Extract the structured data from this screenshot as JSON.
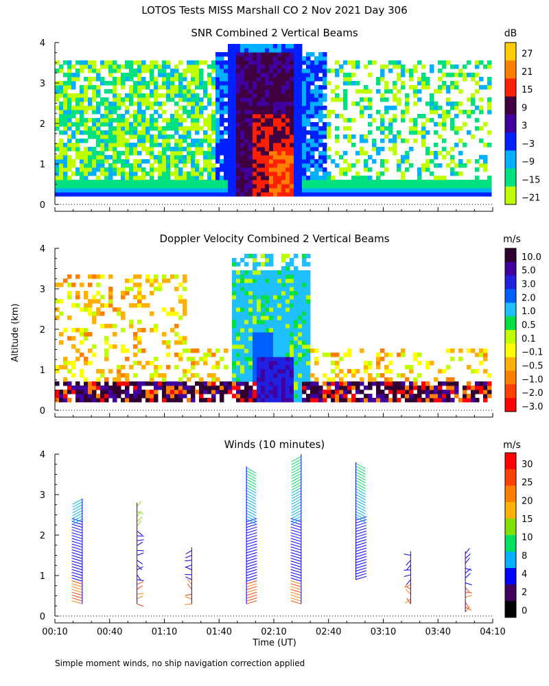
{
  "figure": {
    "title": "LOTOS Tests MISS Marshall CO   2 Nov 2021 Day 306",
    "y_axis_label": "Altitude (km)",
    "x_axis_label": "Time (UT)",
    "footnote": "Simple moment winds, no ship navigation correction applied"
  },
  "chart_data": [
    {
      "type": "heatmap",
      "title": "SNR Combined 2 Vertical Beams",
      "ylim": [
        0,
        4
      ],
      "y_ticks": [
        "0",
        "1",
        "2",
        "3",
        "4"
      ],
      "colorbar": {
        "unit": "dB",
        "labels": [
          "27",
          "21",
          "15",
          "9",
          "3",
          "−3",
          "−9",
          "−15",
          "−21"
        ],
        "colors": [
          "#ffcc00",
          "#ff8000",
          "#ff2000",
          "#400040",
          "#4000a0",
          "#0020ff",
          "#00b0ff",
          "#00e080",
          "#c0ff00"
        ]
      },
      "regions": [
        {
          "t": [
            0.0,
            1.0
          ],
          "alt": [
            0.3,
            0.6
          ],
          "level": "-9 to -3"
        },
        {
          "t": [
            0.4,
            0.55
          ],
          "alt": [
            0.3,
            4.0
          ],
          "level": "3 to 9"
        },
        {
          "t": [
            0.47,
            0.53
          ],
          "alt": [
            0.3,
            2.5
          ],
          "level": "15 to 27"
        },
        {
          "t": [
            0.0,
            0.4
          ],
          "alt": [
            0.6,
            3.6
          ],
          "level": "-21 to -9"
        }
      ]
    },
    {
      "type": "heatmap",
      "title": "Doppler Velocity Combined 2 Vertical Beams",
      "ylim": [
        0,
        4
      ],
      "y_ticks": [
        "0",
        "1",
        "2",
        "3",
        "4"
      ],
      "colorbar": {
        "unit": "m/s",
        "labels": [
          "10.0",
          "5.0",
          "3.0",
          "2.0",
          "1.0",
          "0.5",
          "0.1",
          "−0.1",
          "−0.5",
          "−1.0",
          "−2.0",
          "−3.0"
        ],
        "colors": [
          "#300030",
          "#4000a0",
          "#2020e0",
          "#0060ff",
          "#20c0ff",
          "#00e040",
          "#c0ff00",
          "#ffff00",
          "#ffb000",
          "#ff8000",
          "#ff4000",
          "#ff0000"
        ]
      },
      "regions": [
        {
          "t": [
            0.41,
            0.58
          ],
          "alt": [
            0.3,
            3.9
          ],
          "level": "1.0 to 2.0"
        },
        {
          "t": [
            0.47,
            0.52
          ],
          "alt": [
            0.3,
            1.3
          ],
          "level": "3.0 to 5.0"
        },
        {
          "t": [
            0.0,
            1.0
          ],
          "alt": [
            0.3,
            0.7
          ],
          "level": "mixed"
        }
      ]
    },
    {
      "type": "scatter",
      "subtype": "wind-barbs",
      "title": "Winds (10 minutes)",
      "ylim": [
        0,
        4
      ],
      "y_ticks": [
        "0",
        "1",
        "2",
        "3",
        "4"
      ],
      "x_ticks": [
        "00:10",
        "00:40",
        "01:10",
        "01:40",
        "02:10",
        "02:40",
        "03:10",
        "03:40",
        "04:10"
      ],
      "colorbar": {
        "unit": "m/s",
        "labels": [
          "30",
          "25",
          "20",
          "15",
          "10",
          "8",
          "4",
          "2",
          "0"
        ],
        "colors": [
          "#ff0000",
          "#ff4000",
          "#ff8000",
          "#ffb000",
          "#80e000",
          "#00e060",
          "#00b0ff",
          "#0000ff",
          "#400060",
          "#000000"
        ]
      },
      "profiles": [
        {
          "time": "00:25",
          "alt_range": [
            0.3,
            2.9
          ]
        },
        {
          "time": "00:55",
          "alt_range": [
            0.3,
            2.8
          ]
        },
        {
          "time": "01:25",
          "alt_range": [
            0.3,
            1.7
          ]
        },
        {
          "time": "01:55",
          "alt_range": [
            0.3,
            3.7
          ]
        },
        {
          "time": "02:25",
          "alt_range": [
            0.3,
            4.0
          ]
        },
        {
          "time": "02:55",
          "alt_range": [
            0.9,
            3.8
          ]
        },
        {
          "time": "03:25",
          "alt_range": [
            0.3,
            1.6
          ]
        },
        {
          "time": "03:55",
          "alt_range": [
            0.1,
            1.6
          ]
        }
      ]
    }
  ]
}
